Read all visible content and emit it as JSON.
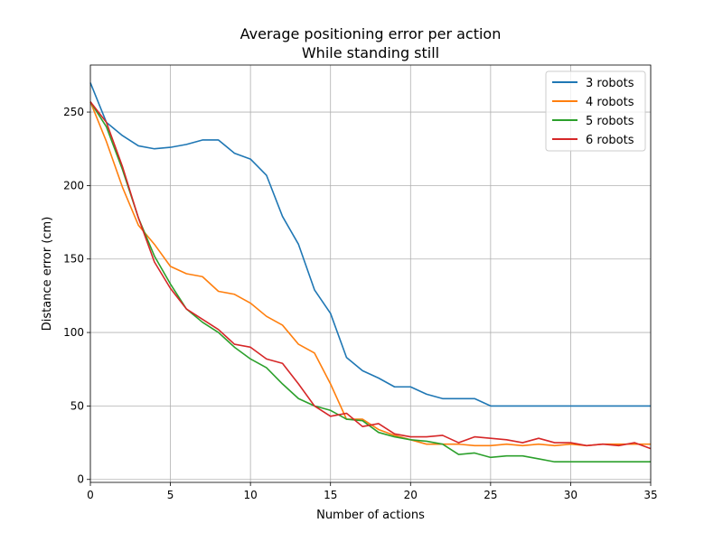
{
  "chart_data": {
    "type": "line",
    "title_line1": "Average positioning error per action",
    "title_line2": "While standing still",
    "xlabel": "Number of actions",
    "ylabel": "Distance error (cm)",
    "xlim": [
      0,
      35
    ],
    "ylim": [
      -2,
      282
    ],
    "xticks": [
      0,
      5,
      10,
      15,
      20,
      25,
      30,
      35
    ],
    "yticks": [
      0,
      50,
      100,
      150,
      200,
      250
    ],
    "grid": true,
    "legend_position": "top-right",
    "x": [
      0,
      1,
      2,
      3,
      4,
      5,
      6,
      7,
      8,
      9,
      10,
      11,
      12,
      13,
      14,
      15,
      16,
      17,
      18,
      19,
      20,
      21,
      22,
      23,
      24,
      25,
      26,
      27,
      28,
      29,
      30,
      31,
      32,
      33,
      34,
      35
    ],
    "series": [
      {
        "name": "3 robots",
        "color": "#1f77b4",
        "values": [
          270,
          243,
          234,
          227,
          225,
          226,
          228,
          231,
          231,
          222,
          218,
          207,
          179,
          160,
          129,
          113,
          83,
          74,
          69,
          63,
          63,
          58,
          55,
          55,
          55,
          50,
          50,
          50,
          50,
          50,
          50,
          50,
          50,
          50,
          50,
          50
        ]
      },
      {
        "name": "4 robots",
        "color": "#ff7f0e",
        "values": [
          257,
          230,
          199,
          173,
          160,
          145,
          140,
          138,
          128,
          126,
          120,
          111,
          105,
          92,
          86,
          65,
          41,
          41,
          34,
          30,
          27,
          24,
          24,
          24,
          23,
          23,
          24,
          23,
          24,
          23,
          24,
          23,
          24,
          24,
          24,
          24
        ]
      },
      {
        "name": "5 robots",
        "color": "#2ca02c",
        "values": [
          257,
          240,
          211,
          178,
          152,
          133,
          116,
          107,
          100,
          90,
          82,
          76,
          65,
          55,
          50,
          47,
          41,
          40,
          32,
          29,
          27,
          26,
          24,
          17,
          18,
          15,
          16,
          16,
          14,
          12,
          12,
          12,
          12,
          12,
          12,
          12
        ]
      },
      {
        "name": "6 robots",
        "color": "#d62728",
        "values": [
          257,
          243,
          213,
          178,
          148,
          130,
          116,
          109,
          102,
          92,
          90,
          82,
          79,
          65,
          50,
          43,
          45,
          36,
          38,
          31,
          29,
          29,
          30,
          25,
          29,
          28,
          27,
          25,
          28,
          25,
          25,
          23,
          24,
          23,
          25,
          21
        ]
      }
    ]
  }
}
